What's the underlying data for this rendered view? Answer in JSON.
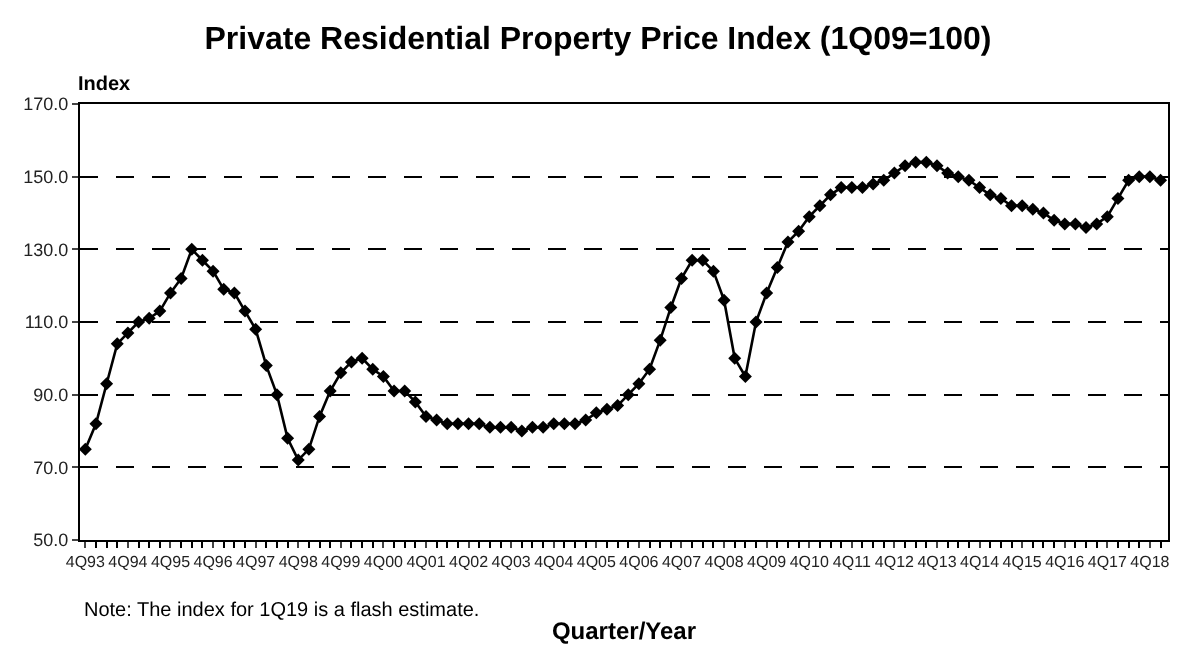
{
  "chart_data": {
    "type": "line",
    "title": "Private Residential Property Price Index (1Q09=100)",
    "ylabel": "Index",
    "xlabel": "Quarter/Year",
    "annotations": [
      "Note: The index for 1Q19 is a flash estimate."
    ],
    "categories": [
      "4Q93",
      null,
      null,
      null,
      "4Q94",
      null,
      null,
      null,
      "4Q95",
      null,
      null,
      null,
      "4Q96",
      null,
      null,
      null,
      "4Q97",
      null,
      null,
      null,
      "4Q98",
      null,
      null,
      null,
      "4Q99",
      null,
      null,
      null,
      "4Q00",
      null,
      null,
      null,
      "4Q01",
      null,
      null,
      null,
      "4Q02",
      null,
      null,
      null,
      "4Q03",
      null,
      null,
      null,
      "4Q04",
      null,
      null,
      null,
      "4Q05",
      null,
      null,
      null,
      "4Q06",
      null,
      null,
      null,
      "4Q07",
      null,
      null,
      null,
      "4Q08",
      null,
      null,
      null,
      "4Q09",
      null,
      null,
      null,
      "4Q10",
      null,
      null,
      null,
      "4Q11",
      null,
      null,
      null,
      "4Q12",
      null,
      null,
      null,
      "4Q13",
      null,
      null,
      null,
      "4Q14",
      null,
      null,
      null,
      "4Q15",
      null,
      null,
      null,
      "4Q16",
      null,
      null,
      null,
      "4Q17",
      null,
      null,
      null,
      "4Q18",
      null
    ],
    "series": [
      {
        "color": "#000000",
        "values": [
          75,
          82,
          93,
          104,
          107,
          110,
          111,
          113,
          118,
          122,
          130,
          127,
          124,
          119,
          118,
          113,
          108,
          98,
          90,
          78,
          72,
          75,
          84,
          91,
          96,
          99,
          100,
          97,
          95,
          91,
          91,
          88,
          84,
          83,
          82,
          82,
          82,
          82,
          81,
          81,
          81,
          80,
          81,
          81,
          82,
          82,
          82,
          83,
          85,
          86,
          87,
          90,
          93,
          97,
          105,
          114,
          122,
          127,
          127,
          124,
          116,
          100,
          95,
          110,
          118,
          125,
          132,
          135,
          139,
          142,
          145,
          147,
          147,
          147,
          148,
          149,
          151,
          153,
          154,
          154,
          153,
          151,
          150,
          149,
          147,
          145,
          144,
          142,
          142,
          141,
          140,
          138,
          137,
          137,
          136,
          137,
          139,
          144,
          149,
          150,
          150,
          149
        ]
      }
    ],
    "ylim": [
      50,
      170
    ],
    "yticks": [
      {
        "value": 50,
        "label": "50.0"
      },
      {
        "value": 70,
        "label": "70.0"
      },
      {
        "value": 90,
        "label": "90.0"
      },
      {
        "value": 110,
        "label": "110.0"
      },
      {
        "value": 130,
        "label": "130.0"
      },
      {
        "value": 150,
        "label": "150.0"
      },
      {
        "value": 170,
        "label": "170.0"
      }
    ],
    "grid": "y",
    "marker": "diamond",
    "line_style": "solid",
    "legend": false
  }
}
